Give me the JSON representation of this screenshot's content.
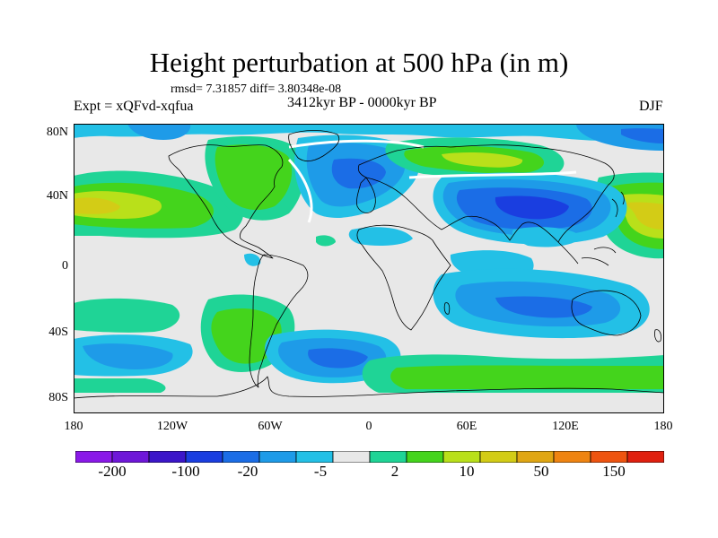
{
  "title": "Height perturbation at 500 hPa (in m)",
  "stats": "rmsd= 7.31857 diff= 3.80348e-08",
  "experiment": "Expt = xQFvd-xqfua",
  "period": "3412kyr BP - 0000kyr BP",
  "season": "DJF",
  "map": {
    "projection": "cylindrical equidistant",
    "lon_range": [
      -180,
      180
    ],
    "lat_range": [
      -90,
      90
    ],
    "lat_labels": [
      "80N",
      "40N",
      "0",
      "40S",
      "80S"
    ],
    "lon_labels": [
      "180",
      "120W",
      "60W",
      "0",
      "60E",
      "120E",
      "180"
    ]
  },
  "colorbar": {
    "colors": [
      "#8a19e8",
      "#6e17d8",
      "#3b16c9",
      "#1a3ee0",
      "#1b6de6",
      "#1e9be8",
      "#23c0e6",
      "#e8e8e8",
      "#1fd496",
      "#44d41c",
      "#b9e01a",
      "#d3cc16",
      "#e0a613",
      "#ef8411",
      "#ee5410",
      "#e0200f"
    ],
    "labels": [
      "-200",
      "-100",
      "-20",
      "-5",
      "2",
      "10",
      "50",
      "150"
    ]
  }
}
